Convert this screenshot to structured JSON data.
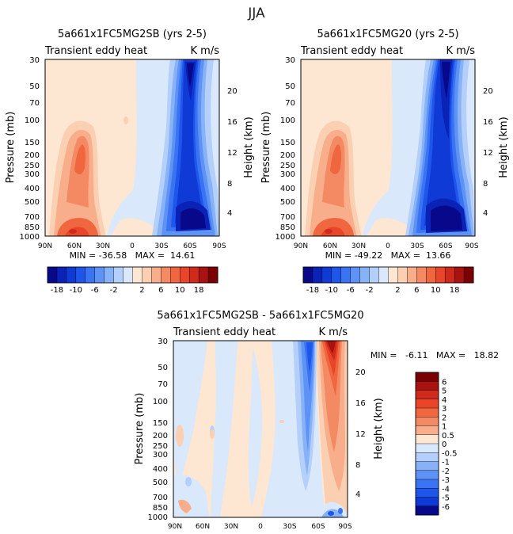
{
  "figure_title": "JJA",
  "colors": {
    "neg": [
      "#08088a",
      "#0a22b5",
      "#0f3ad6",
      "#1e56ec",
      "#3b74f2",
      "#5e93f5",
      "#88b2f7",
      "#b4cff9",
      "#d9e8fb"
    ],
    "pos": [
      "#fde6d2",
      "#fbcfb2",
      "#f8ae8b",
      "#f48a64",
      "#f0663f",
      "#e8452a",
      "#d02a1c",
      "#a81210",
      "#7a0004"
    ]
  },
  "chart_data": [
    {
      "type": "contour",
      "id": "top-left",
      "title": "5a661x1FC5MG2SB (yrs 2-5)",
      "variable": "Transient eddy heat",
      "units": "K m/s",
      "xlabel": "",
      "ylabel": "Pressure (mb)",
      "ylabel_right": "Height (km)",
      "x_ticks": [
        "90N",
        "60N",
        "30N",
        "0",
        "30S",
        "60S",
        "90S"
      ],
      "y_ticks": [
        "30",
        "50",
        "70",
        "100",
        "150",
        "200",
        "250",
        "300",
        "400",
        "500",
        "700",
        "850",
        "1000"
      ],
      "y_ticks_right": [
        "20",
        "16",
        "12",
        "8",
        "4"
      ],
      "stats_text": "MIN = -36.58   MAX =  14.61",
      "min": -36.58,
      "max": 14.61
    },
    {
      "type": "contour",
      "id": "top-right",
      "title": "5a661x1FC5MG20 (yrs 2-5)",
      "variable": "Transient eddy heat",
      "units": "K m/s",
      "xlabel": "",
      "ylabel": "Pressure (mb)",
      "ylabel_right": "Height (km)",
      "x_ticks": [
        "90N",
        "60N",
        "30N",
        "0",
        "30S",
        "60S",
        "90S"
      ],
      "y_ticks": [
        "30",
        "50",
        "70",
        "100",
        "150",
        "200",
        "250",
        "300",
        "400",
        "500",
        "700",
        "850",
        "1000"
      ],
      "y_ticks_right": [
        "20",
        "16",
        "12",
        "8",
        "4"
      ],
      "stats_text": "MIN = -49.22   MAX =  13.66",
      "min": -49.22,
      "max": 13.66
    },
    {
      "type": "contour",
      "id": "bottom",
      "title": "5a661x1FC5MG2SB - 5a661x1FC5MG20",
      "variable": "Transient eddy heat",
      "units": "K m/s",
      "xlabel": "",
      "ylabel": "Pressure (mb)",
      "ylabel_right": "Height (km)",
      "x_ticks": [
        "90N",
        "60N",
        "30N",
        "0",
        "30S",
        "60S",
        "90S"
      ],
      "y_ticks": [
        "30",
        "50",
        "70",
        "100",
        "150",
        "200",
        "250",
        "300",
        "400",
        "500",
        "700",
        "850",
        "1000"
      ],
      "y_ticks_right": [
        "20",
        "16",
        "12",
        "8",
        "4"
      ],
      "stats_text": "MIN =   -6.11   MAX =   18.82",
      "min": -6.11,
      "max": 18.82
    }
  ],
  "colorbar_top": {
    "labels": [
      "-18",
      "-10",
      "-6",
      "-2",
      "2",
      "6",
      "10",
      "18"
    ],
    "levels": [
      -22,
      -18,
      -14,
      -10,
      -8,
      -6,
      -4,
      -2,
      0,
      2,
      4,
      6,
      8,
      10,
      14,
      18,
      22
    ]
  },
  "colorbar_bottom": {
    "labels": [
      "6",
      "5",
      "4",
      "3",
      "2",
      "1",
      "0.5",
      "0",
      "-0.5",
      "-1",
      "-2",
      "-3",
      "-4",
      "-5",
      "-6"
    ]
  }
}
